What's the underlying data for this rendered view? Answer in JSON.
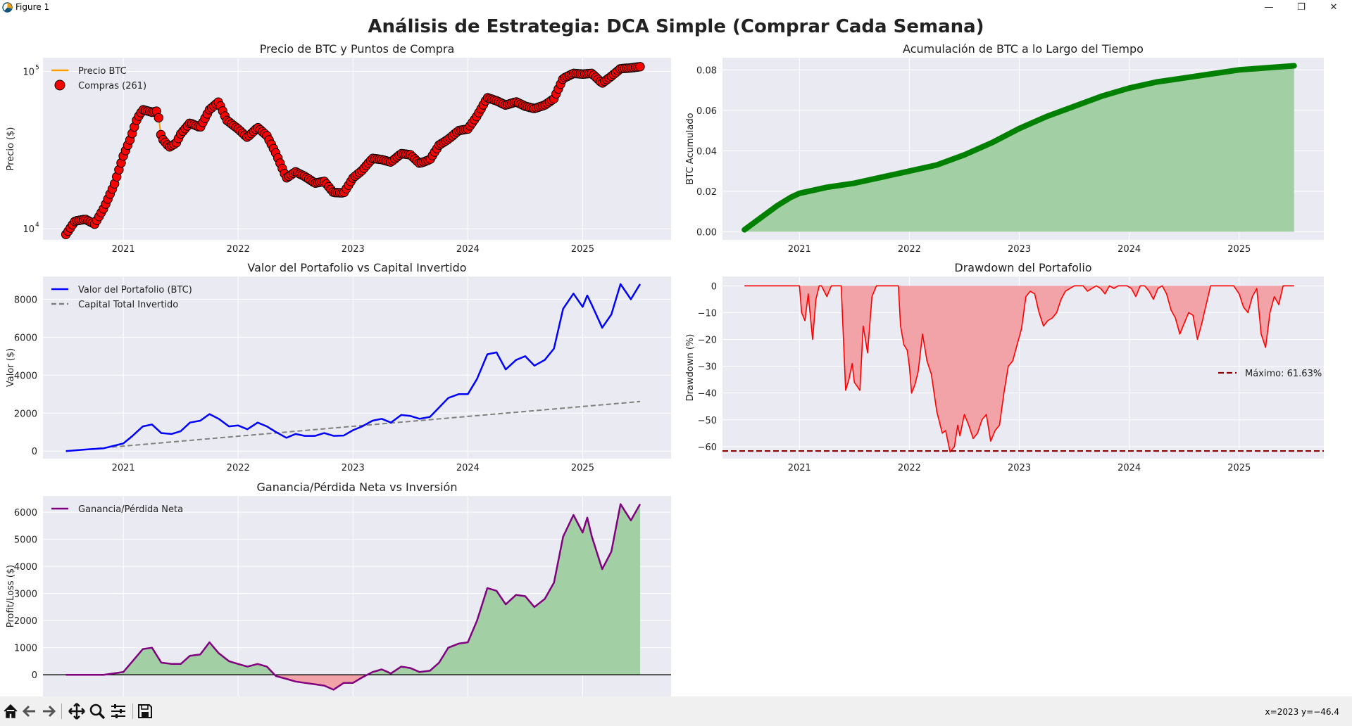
{
  "window": {
    "title": "Figure 1",
    "minimize_glyph": "—",
    "maximize_glyph": "❐",
    "close_glyph": "✕"
  },
  "figure": {
    "suptitle": "Análisis de Estrategia: DCA Simple (Comprar Cada Semana)"
  },
  "colors": {
    "axes_bg": "#eaeaf2",
    "grid": "#ffffff",
    "price_line": "#ff9900",
    "buy_marker": "#ff0000",
    "accum": "#008000",
    "accum_fill": "#a3cfa4",
    "portfolio": "#0000ff",
    "invested": "#808080",
    "drawdown": "#ff0000",
    "drawdown_fill": "#f2a3a8",
    "max_line": "#8b0000",
    "pnl": "#800080",
    "gain_fill": "#a3cfa4",
    "loss_fill": "#f2a3a8"
  },
  "toolbar": {
    "icons": [
      "home-icon",
      "back-icon",
      "forward-icon",
      "pan-icon",
      "zoom-icon",
      "configure-subplots-icon",
      "save-icon"
    ],
    "coords_readout": "x=2023 y=−46.4"
  },
  "chart_data": [
    {
      "id": "price",
      "type": "scatter",
      "title": "Precio de BTC y Puntos de Compra",
      "xlabel": "",
      "ylabel": "Precio ($)",
      "yscale": "log",
      "xlim": [
        2020.3,
        2025.77
      ],
      "ylim": [
        8500,
        122000
      ],
      "x_ticks": [
        "2021",
        "2022",
        "2023",
        "2024",
        "2025"
      ],
      "y_ticks_major": [
        "10",
        "10"
      ],
      "y_ticks_exp": [
        "4",
        "5"
      ],
      "grid": true,
      "legend_position": "top-left",
      "legend": [
        "Precio BTC",
        "Compras (261)"
      ],
      "x": [
        2020.5,
        2020.58,
        2020.67,
        2020.75,
        2020.83,
        2020.92,
        2021.0,
        2021.06,
        2021.12,
        2021.17,
        2021.25,
        2021.3,
        2021.33,
        2021.4,
        2021.46,
        2021.5,
        2021.58,
        2021.67,
        2021.75,
        2021.83,
        2021.9,
        2022.0,
        2022.08,
        2022.17,
        2022.25,
        2022.33,
        2022.42,
        2022.5,
        2022.58,
        2022.67,
        2022.75,
        2022.83,
        2022.92,
        2023.0,
        2023.08,
        2023.17,
        2023.25,
        2023.33,
        2023.42,
        2023.5,
        2023.58,
        2023.67,
        2023.75,
        2023.83,
        2023.92,
        2024.0,
        2024.08,
        2024.17,
        2024.25,
        2024.33,
        2024.42,
        2024.5,
        2024.58,
        2024.67,
        2024.75,
        2024.83,
        2024.92,
        2025.0,
        2025.08,
        2025.17,
        2025.25,
        2025.33,
        2025.42,
        2025.5
      ],
      "values": [
        9200,
        11200,
        11500,
        10700,
        13500,
        19000,
        29000,
        37000,
        50000,
        57000,
        55000,
        56000,
        38000,
        33000,
        35000,
        40000,
        47000,
        44000,
        57000,
        64000,
        49000,
        43000,
        38000,
        44000,
        39000,
        30000,
        21000,
        23000,
        21500,
        19500,
        20000,
        17000,
        16900,
        21000,
        23500,
        28000,
        27500,
        26500,
        30000,
        29500,
        26000,
        27500,
        34000,
        37000,
        42000,
        43000,
        52000,
        68000,
        65000,
        61000,
        64000,
        60000,
        58000,
        61000,
        67000,
        90000,
        97000,
        96000,
        97000,
        84000,
        93000,
        104000,
        105000,
        107000
      ]
    },
    {
      "id": "accum",
      "type": "area",
      "title": "Acumulación de BTC a lo Largo del Tiempo",
      "xlabel": "",
      "ylabel": "BTC Acumulado",
      "xlim": [
        2020.3,
        2025.77
      ],
      "ylim": [
        -0.004,
        0.086
      ],
      "x_ticks": [
        "2021",
        "2022",
        "2023",
        "2024",
        "2025"
      ],
      "y_ticks": [
        "0.00",
        "0.02",
        "0.04",
        "0.06",
        "0.08"
      ],
      "grid": true,
      "x": [
        2020.5,
        2020.6,
        2020.7,
        2020.8,
        2020.92,
        2021.0,
        2021.25,
        2021.5,
        2021.75,
        2022.0,
        2022.25,
        2022.5,
        2022.75,
        2023.0,
        2023.25,
        2023.5,
        2023.75,
        2024.0,
        2024.25,
        2024.5,
        2024.75,
        2025.0,
        2025.25,
        2025.5
      ],
      "values": [
        0.001,
        0.005,
        0.009,
        0.013,
        0.017,
        0.019,
        0.022,
        0.024,
        0.027,
        0.03,
        0.033,
        0.038,
        0.044,
        0.051,
        0.057,
        0.062,
        0.067,
        0.071,
        0.074,
        0.076,
        0.078,
        0.08,
        0.081,
        0.082
      ]
    },
    {
      "id": "portfolio",
      "type": "line",
      "title": "Valor del Portafolio vs Capital Invertido",
      "xlabel": "",
      "ylabel": "Valor ($)",
      "xlim": [
        2020.3,
        2025.77
      ],
      "ylim": [
        -400,
        9200
      ],
      "x_ticks": [
        "2021",
        "2022",
        "2023",
        "2024",
        "2025"
      ],
      "y_ticks": [
        "0",
        "2000",
        "4000",
        "6000",
        "8000"
      ],
      "grid": true,
      "legend_position": "top-left",
      "series": [
        {
          "name": "Valor del Portafolio (BTC)",
          "x": [
            2020.5,
            2020.67,
            2020.83,
            2021.0,
            2021.08,
            2021.17,
            2021.25,
            2021.33,
            2021.42,
            2021.5,
            2021.58,
            2021.67,
            2021.75,
            2021.83,
            2021.92,
            2022.0,
            2022.08,
            2022.17,
            2022.25,
            2022.33,
            2022.42,
            2022.5,
            2022.58,
            2022.67,
            2022.75,
            2022.83,
            2022.92,
            2023.0,
            2023.08,
            2023.17,
            2023.25,
            2023.33,
            2023.42,
            2023.5,
            2023.58,
            2023.67,
            2023.75,
            2023.83,
            2023.92,
            2024.0,
            2024.08,
            2024.17,
            2024.25,
            2024.33,
            2024.42,
            2024.5,
            2024.58,
            2024.67,
            2024.75,
            2024.83,
            2024.92,
            2025.0,
            2025.04,
            2025.08,
            2025.17,
            2025.25,
            2025.33,
            2025.42,
            2025.5
          ],
          "values": [
            0,
            80,
            150,
            400,
            800,
            1300,
            1400,
            950,
            900,
            1050,
            1500,
            1600,
            1950,
            1700,
            1300,
            1350,
            1150,
            1500,
            1300,
            1000,
            700,
            900,
            800,
            800,
            950,
            800,
            820,
            1100,
            1300,
            1600,
            1700,
            1500,
            1900,
            1850,
            1700,
            1800,
            2300,
            2800,
            3000,
            3000,
            3800,
            5100,
            5200,
            4300,
            4800,
            5000,
            4500,
            4800,
            5400,
            7500,
            8300,
            7600,
            8200,
            7700,
            6500,
            7200,
            8800,
            8000,
            8800
          ]
        },
        {
          "name": "Capital Total Invertido",
          "x": [
            2020.5,
            2025.5
          ],
          "values": [
            0,
            2610
          ]
        }
      ]
    },
    {
      "id": "drawdown",
      "type": "area",
      "title": "Drawdown del Portafolio",
      "xlabel": "",
      "ylabel": "Drawdown (%)",
      "xlim": [
        2020.3,
        2025.77
      ],
      "ylim": [
        -64.5,
        3.5
      ],
      "x_ticks": [
        "2021",
        "2022",
        "2023",
        "2024",
        "2025"
      ],
      "y_ticks": [
        "0",
        "−10",
        "−20",
        "−30",
        "−40",
        "−50",
        "−60"
      ],
      "grid": true,
      "legend_position": "center-right",
      "legend": [
        "Máximo: 61.63%"
      ],
      "max_drawdown": -61.63,
      "x": [
        2020.5,
        2020.7,
        2021.0,
        2021.02,
        2021.05,
        2021.08,
        2021.12,
        2021.15,
        2021.18,
        2021.2,
        2021.25,
        2021.27,
        2021.29,
        2021.32,
        2021.38,
        2021.42,
        2021.45,
        2021.48,
        2021.5,
        2021.55,
        2021.58,
        2021.62,
        2021.66,
        2021.7,
        2021.75,
        2021.9,
        2021.92,
        2021.95,
        2021.98,
        2022.0,
        2022.02,
        2022.05,
        2022.08,
        2022.12,
        2022.16,
        2022.2,
        2022.25,
        2022.3,
        2022.33,
        2022.37,
        2022.41,
        2022.44,
        2022.46,
        2022.5,
        2022.54,
        2022.58,
        2022.62,
        2022.66,
        2022.7,
        2022.74,
        2022.78,
        2022.82,
        2022.86,
        2022.9,
        2022.94,
        2022.98,
        2023.02,
        2023.06,
        2023.1,
        2023.14,
        2023.18,
        2023.22,
        2023.26,
        2023.3,
        2023.34,
        2023.38,
        2023.42,
        2023.46,
        2023.5,
        2023.54,
        2023.58,
        2023.62,
        2023.66,
        2023.7,
        2023.74,
        2023.78,
        2023.82,
        2023.86,
        2023.9,
        2023.94,
        2023.98,
        2024.02,
        2024.06,
        2024.1,
        2024.14,
        2024.18,
        2024.22,
        2024.26,
        2024.3,
        2024.34,
        2024.38,
        2024.42,
        2024.46,
        2024.5,
        2024.54,
        2024.58,
        2024.62,
        2024.66,
        2024.7,
        2024.74,
        2024.78,
        2024.82,
        2024.86,
        2024.9,
        2024.95,
        2025.0,
        2025.04,
        2025.08,
        2025.12,
        2025.16,
        2025.2,
        2025.24,
        2025.28,
        2025.32,
        2025.36,
        2025.4,
        2025.44,
        2025.5
      ],
      "values": [
        0,
        0,
        0,
        -10,
        -13,
        -3,
        -20,
        -5,
        0,
        0,
        -4,
        -2,
        0,
        0,
        0,
        -39,
        -35,
        -29,
        -36,
        -39,
        -15,
        -25,
        -4,
        0,
        0,
        0,
        -15,
        -22,
        -24,
        -30,
        -40,
        -37,
        -32,
        -18,
        -28,
        -33,
        -47,
        -55,
        -54,
        -62,
        -60,
        -52,
        -56,
        -48,
        -52,
        -57,
        -55,
        -50,
        -48,
        -58,
        -54,
        -52,
        -40,
        -30,
        -28,
        -22,
        -16,
        -4,
        -2,
        -3,
        -10,
        -15,
        -13,
        -12,
        -10,
        -5,
        -2,
        -1,
        0,
        0,
        0,
        -2,
        -1,
        0,
        -1,
        -3,
        0,
        -1,
        0,
        0,
        0,
        -1,
        -4,
        0,
        0,
        -2,
        -5,
        -1,
        0,
        -3,
        -9,
        -12,
        -18,
        -14,
        -10,
        -11,
        -20,
        -14,
        -7,
        0,
        0,
        0,
        0,
        0,
        0,
        -3,
        -8,
        -10,
        -4,
        -1,
        -18,
        -23,
        -10,
        -4,
        -7,
        0,
        0,
        0
      ]
    },
    {
      "id": "pnl",
      "type": "area",
      "title": "Ganancia/Pérdida Neta vs Inversión",
      "xlabel": "",
      "ylabel": "Profit/Loss ($)",
      "xlim": [
        2020.3,
        2025.77
      ],
      "ylim": [
        -800,
        6600
      ],
      "x_ticks": [
        "2021",
        "2022",
        "2023",
        "2024",
        "2025"
      ],
      "y_ticks": [
        "0",
        "1000",
        "2000",
        "3000",
        "4000",
        "5000",
        "6000"
      ],
      "grid": true,
      "legend_position": "top-left",
      "series": [
        {
          "name": "Ganancia/Pérdida Neta",
          "x": [
            2020.5,
            2020.67,
            2020.83,
            2021.0,
            2021.08,
            2021.17,
            2021.25,
            2021.33,
            2021.42,
            2021.5,
            2021.58,
            2021.67,
            2021.75,
            2021.83,
            2021.92,
            2022.0,
            2022.08,
            2022.17,
            2022.25,
            2022.33,
            2022.42,
            2022.5,
            2022.58,
            2022.67,
            2022.75,
            2022.83,
            2022.92,
            2023.0,
            2023.08,
            2023.17,
            2023.25,
            2023.33,
            2023.42,
            2023.5,
            2023.58,
            2023.67,
            2023.75,
            2023.83,
            2023.92,
            2024.0,
            2024.08,
            2024.17,
            2024.25,
            2024.33,
            2024.42,
            2024.5,
            2024.58,
            2024.67,
            2024.75,
            2024.83,
            2024.92,
            2025.0,
            2025.04,
            2025.08,
            2025.17,
            2025.25,
            2025.33,
            2025.42,
            2025.5
          ],
          "values": [
            0,
            0,
            0,
            100,
            500,
            950,
            1000,
            450,
            400,
            400,
            700,
            750,
            1200,
            800,
            500,
            400,
            300,
            400,
            300,
            -50,
            -150,
            -250,
            -300,
            -350,
            -400,
            -550,
            -300,
            -300,
            -100,
            100,
            200,
            50,
            300,
            250,
            100,
            150,
            450,
            1000,
            1150,
            1200,
            2000,
            3200,
            3100,
            2600,
            2950,
            2900,
            2500,
            2800,
            3400,
            5100,
            5900,
            5250,
            5800,
            5100,
            3900,
            4550,
            6300,
            5700,
            6300
          ]
        }
      ]
    }
  ]
}
